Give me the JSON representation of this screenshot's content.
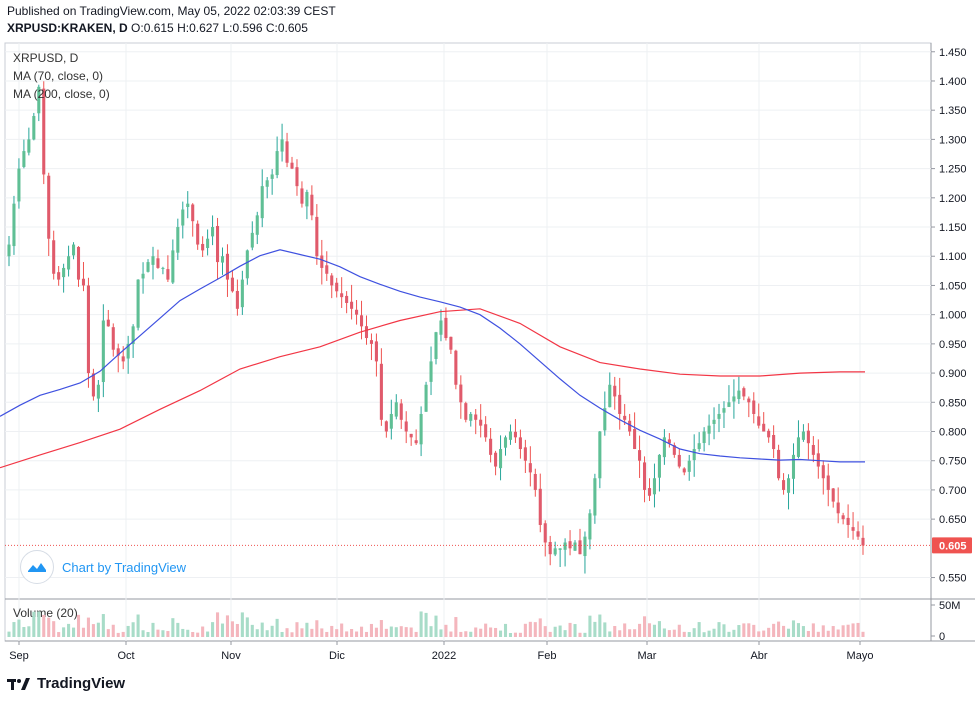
{
  "header": {
    "published": "Published on TradingView.com, May 05, 2022 02:03:39 CEST",
    "symbol_line": "XRPUSD:KRAKEN, D",
    "o_label": "O:",
    "o": "0.615",
    "h_label": "H:",
    "h": "0.627",
    "l_label": "L:",
    "l": "0.596",
    "c_label": "C:",
    "c": "0.605"
  },
  "legend": {
    "title": "XRPUSD, D",
    "ma70": "MA (70, close, 0)",
    "ma200": "MA (200, close, 0)"
  },
  "watermark": {
    "text": "Chart by TradingView"
  },
  "footer": {
    "brand": "TradingView"
  },
  "colors": {
    "up": "#26a69a",
    "up_fill": "#5fbf95",
    "down": "#ef5350",
    "down_fill": "#e05a6b",
    "ma70": "#3f51e0",
    "ma200": "#f23645",
    "last_price_bg": "#ef5350",
    "grid": "#eef0f3",
    "vol_up": "#a8dcc8",
    "vol_down": "#f4b6bd"
  },
  "chart_data": {
    "type": "candlestick",
    "symbol": "XRPUSD:KRAKEN",
    "timeframe": "D",
    "last_price": 0.605,
    "last_price_label": "0.605",
    "ylim": [
      0.515,
      1.465
    ],
    "y_ticks": [
      "1.450",
      "1.400",
      "1.350",
      "1.300",
      "1.250",
      "1.200",
      "1.150",
      "1.100",
      "1.050",
      "1.000",
      "0.950",
      "0.900",
      "0.850",
      "0.800",
      "0.750",
      "0.700",
      "0.650",
      "0.550"
    ],
    "x_tick_labels": [
      "Sep",
      "Oct",
      "Nov",
      "Dic",
      "2022",
      "Feb",
      "Mar",
      "Abr",
      "Mayo"
    ],
    "volume_pane": {
      "title": "Volume (20)",
      "ticks": [
        "50M",
        "0"
      ]
    },
    "candles_close": [
      1.12,
      1.19,
      1.25,
      1.28,
      1.3,
      1.34,
      1.39,
      1.24,
      1.13,
      1.07,
      1.06,
      1.08,
      1.1,
      1.12,
      1.06,
      1.05,
      0.9,
      0.86,
      0.88,
      0.99,
      0.98,
      0.94,
      0.93,
      0.92,
      0.95,
      0.98,
      1.06,
      1.07,
      1.09,
      1.1,
      1.08,
      1.08,
      1.06,
      1.11,
      1.15,
      1.18,
      1.19,
      1.16,
      1.12,
      1.11,
      1.13,
      1.15,
      1.09,
      1.1,
      1.06,
      1.04,
      1.01,
      1.06,
      1.11,
      1.14,
      1.17,
      1.22,
      1.23,
      1.24,
      1.28,
      1.3,
      1.26,
      1.25,
      1.22,
      1.19,
      1.21,
      1.17,
      1.1,
      1.08,
      1.07,
      1.05,
      1.04,
      1.03,
      1.02,
      1.01,
      1.0,
      0.98,
      0.96,
      0.95,
      0.92,
      0.82,
      0.8,
      0.83,
      0.85,
      0.82,
      0.8,
      0.79,
      0.78,
      0.83,
      0.88,
      0.92,
      0.97,
      0.99,
      0.96,
      0.94,
      0.88,
      0.85,
      0.82,
      0.83,
      0.82,
      0.81,
      0.79,
      0.76,
      0.74,
      0.77,
      0.79,
      0.8,
      0.79,
      0.77,
      0.75,
      0.73,
      0.7,
      0.64,
      0.61,
      0.59,
      0.6,
      0.6,
      0.61,
      0.6,
      0.61,
      0.59,
      0.62,
      0.66,
      0.72,
      0.8,
      0.84,
      0.88,
      0.86,
      0.83,
      0.82,
      0.8,
      0.77,
      0.75,
      0.7,
      0.69,
      0.72,
      0.76,
      0.79,
      0.78,
      0.76,
      0.74,
      0.73,
      0.75,
      0.77,
      0.78,
      0.8,
      0.81,
      0.82,
      0.83,
      0.84,
      0.85,
      0.86,
      0.87,
      0.86,
      0.85,
      0.83,
      0.81,
      0.8,
      0.79,
      0.77,
      0.72,
      0.7,
      0.72,
      0.76,
      0.79,
      0.8,
      0.78,
      0.76,
      0.74,
      0.72,
      0.7,
      0.68,
      0.66,
      0.65,
      0.64,
      0.63,
      0.62,
      0.605
    ],
    "ma70_points": [
      [
        0,
        0.826
      ],
      [
        20,
        0.845
      ],
      [
        40,
        0.862
      ],
      [
        60,
        0.872
      ],
      [
        80,
        0.883
      ],
      [
        100,
        0.903
      ],
      [
        120,
        0.934
      ],
      [
        140,
        0.964
      ],
      [
        160,
        0.994
      ],
      [
        180,
        1.024
      ],
      [
        200,
        1.044
      ],
      [
        220,
        1.063
      ],
      [
        240,
        1.083
      ],
      [
        260,
        1.101
      ],
      [
        280,
        1.111
      ],
      [
        300,
        1.103
      ],
      [
        320,
        1.095
      ],
      [
        340,
        1.082
      ],
      [
        360,
        1.065
      ],
      [
        380,
        1.052
      ],
      [
        400,
        1.04
      ],
      [
        420,
        1.03
      ],
      [
        440,
        1.022
      ],
      [
        460,
        1.013
      ],
      [
        480,
        1.0
      ],
      [
        500,
        0.977
      ],
      [
        520,
        0.95
      ],
      [
        540,
        0.92
      ],
      [
        560,
        0.89
      ],
      [
        580,
        0.862
      ],
      [
        600,
        0.84
      ],
      [
        620,
        0.82
      ],
      [
        640,
        0.802
      ],
      [
        660,
        0.787
      ],
      [
        680,
        0.77
      ],
      [
        700,
        0.762
      ],
      [
        720,
        0.758
      ],
      [
        740,
        0.755
      ],
      [
        760,
        0.753
      ],
      [
        780,
        0.751
      ],
      [
        800,
        0.752
      ],
      [
        820,
        0.75
      ],
      [
        840,
        0.748
      ],
      [
        865,
        0.748
      ]
    ],
    "ma200_points": [
      [
        0,
        0.738
      ],
      [
        40,
        0.76
      ],
      [
        80,
        0.781
      ],
      [
        120,
        0.804
      ],
      [
        160,
        0.838
      ],
      [
        200,
        0.87
      ],
      [
        240,
        0.907
      ],
      [
        280,
        0.928
      ],
      [
        320,
        0.945
      ],
      [
        360,
        0.97
      ],
      [
        400,
        0.99
      ],
      [
        440,
        1.005
      ],
      [
        480,
        1.01
      ],
      [
        520,
        0.985
      ],
      [
        560,
        0.945
      ],
      [
        600,
        0.918
      ],
      [
        640,
        0.907
      ],
      [
        680,
        0.898
      ],
      [
        720,
        0.895
      ],
      [
        760,
        0.895
      ],
      [
        800,
        0.9
      ],
      [
        840,
        0.902
      ],
      [
        865,
        0.902
      ]
    ]
  }
}
